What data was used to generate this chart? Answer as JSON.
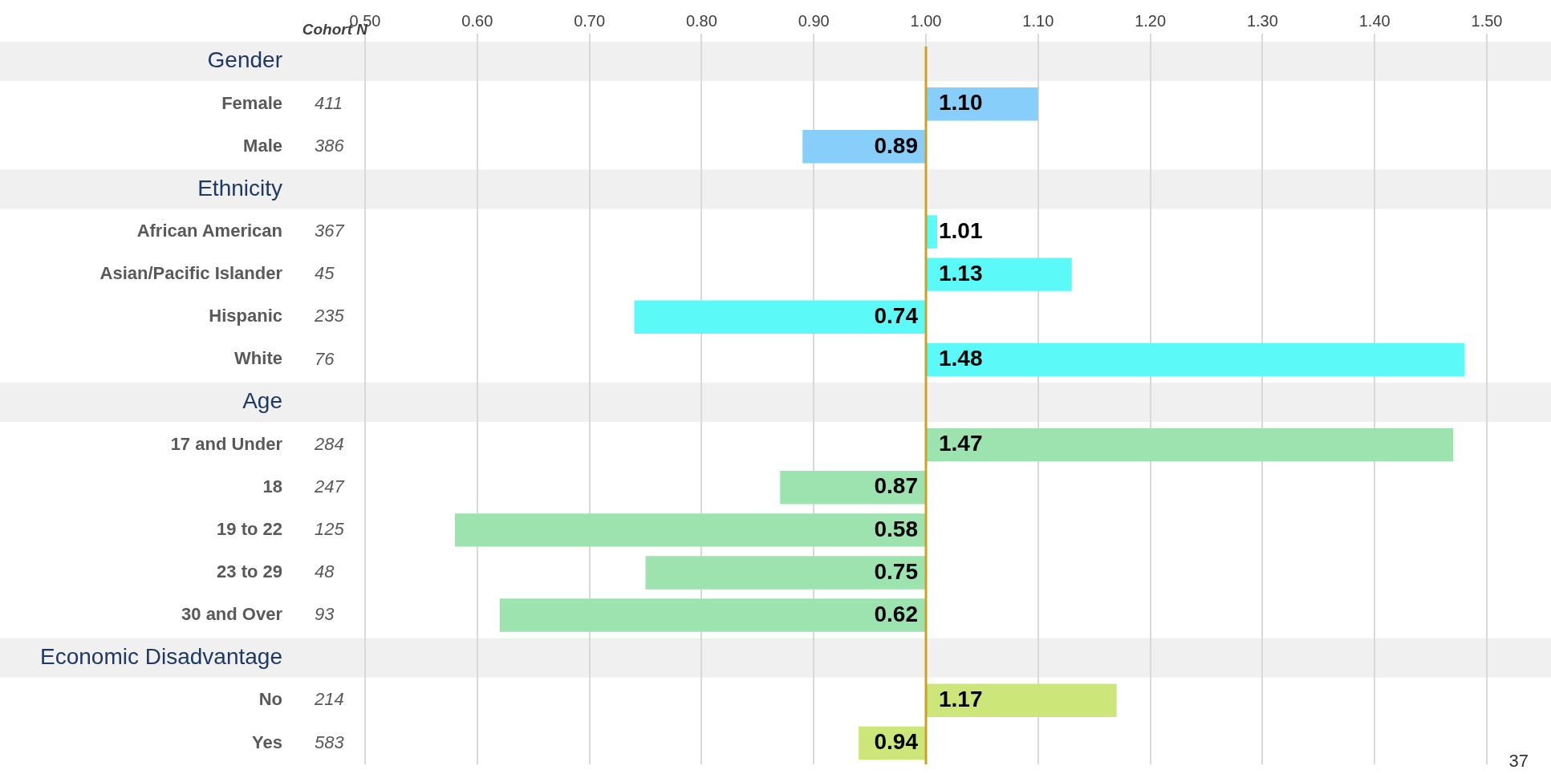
{
  "chart_data": {
    "type": "bar",
    "orientation": "horizontal",
    "categories": [
      "Gender",
      "Female",
      "Male",
      "Ethnicity",
      "African American",
      "Asian/Pacific Islander",
      "Hispanic",
      "White",
      "Age",
      "17 and Under",
      "18",
      "19 to 22",
      "23 to 29",
      "30 and Over",
      "Economic Disadvantage",
      "No",
      "Yes"
    ],
    "base": [
      null,
      1,
      1,
      null,
      1,
      1,
      1,
      1,
      null,
      1,
      1,
      1,
      1,
      1,
      null,
      1,
      1
    ],
    "values": [
      null,
      0.1,
      -0.11,
      null,
      0.01,
      0.13,
      -0.26,
      0.48,
      null,
      0.47,
      -0.13,
      -0.42,
      -0.25,
      -0.38,
      null,
      0.17,
      -0.06
    ],
    "value_labels": [
      null,
      "1.10",
      "0.89",
      null,
      "1.01",
      "1.13",
      "0.74",
      "1.48",
      null,
      "1.47",
      "0.87",
      "0.58",
      "0.75",
      "0.62",
      null,
      "1.17",
      "0.94"
    ],
    "colors": [
      null,
      "#87cefa",
      "#87cefa",
      null,
      "#5cf9f9",
      "#5cf9f9",
      "#5cf9f9",
      "#5cf9f9",
      null,
      "#9ce3b0",
      "#9ce3b0",
      "#9ce3b0",
      "#9ce3b0",
      "#9ce3b0",
      null,
      "#cde67a",
      "#cde67a"
    ],
    "xlim": [
      0.5,
      1.5
    ],
    "xticks": [
      {
        "value": 0.5,
        "label": "0.50"
      },
      {
        "value": 0.6,
        "label": "0.60"
      },
      {
        "value": 0.7,
        "label": "0.70"
      },
      {
        "value": 0.8,
        "label": "0.80"
      },
      {
        "value": 0.9,
        "label": "0.90"
      },
      {
        "value": 1.0,
        "label": "1.00"
      },
      {
        "value": 1.1,
        "label": "1.10"
      },
      {
        "value": 1.2,
        "label": "1.20"
      },
      {
        "value": 1.3,
        "label": "1.30"
      },
      {
        "value": 1.4,
        "label": "1.40"
      },
      {
        "value": 1.5,
        "label": "1.50"
      }
    ],
    "grid": "x",
    "ref_lines": [
      {
        "axis": "x",
        "value": 1,
        "color": "#c9a227"
      }
    ],
    "bands": [
      {
        "axis": "y",
        "from": "Gender",
        "to": "Gender",
        "color": "#f0f0f0"
      },
      {
        "axis": "y",
        "from": "Ethnicity",
        "to": "Ethnicity",
        "color": "#f0f0f0"
      },
      {
        "axis": "y",
        "from": "Age",
        "to": "Age",
        "color": "#f0f0f0"
      },
      {
        "axis": "y",
        "from": "Economic Disadvantage",
        "to": "Economic Disadvantage",
        "color": "#f0f0f0"
      }
    ],
    "annotations": [
      "Cohort N",
      "411",
      "386",
      "367",
      "45",
      "235",
      "76",
      "284",
      "247",
      "125",
      "48",
      "93",
      "214",
      "583",
      "37"
    ]
  }
}
